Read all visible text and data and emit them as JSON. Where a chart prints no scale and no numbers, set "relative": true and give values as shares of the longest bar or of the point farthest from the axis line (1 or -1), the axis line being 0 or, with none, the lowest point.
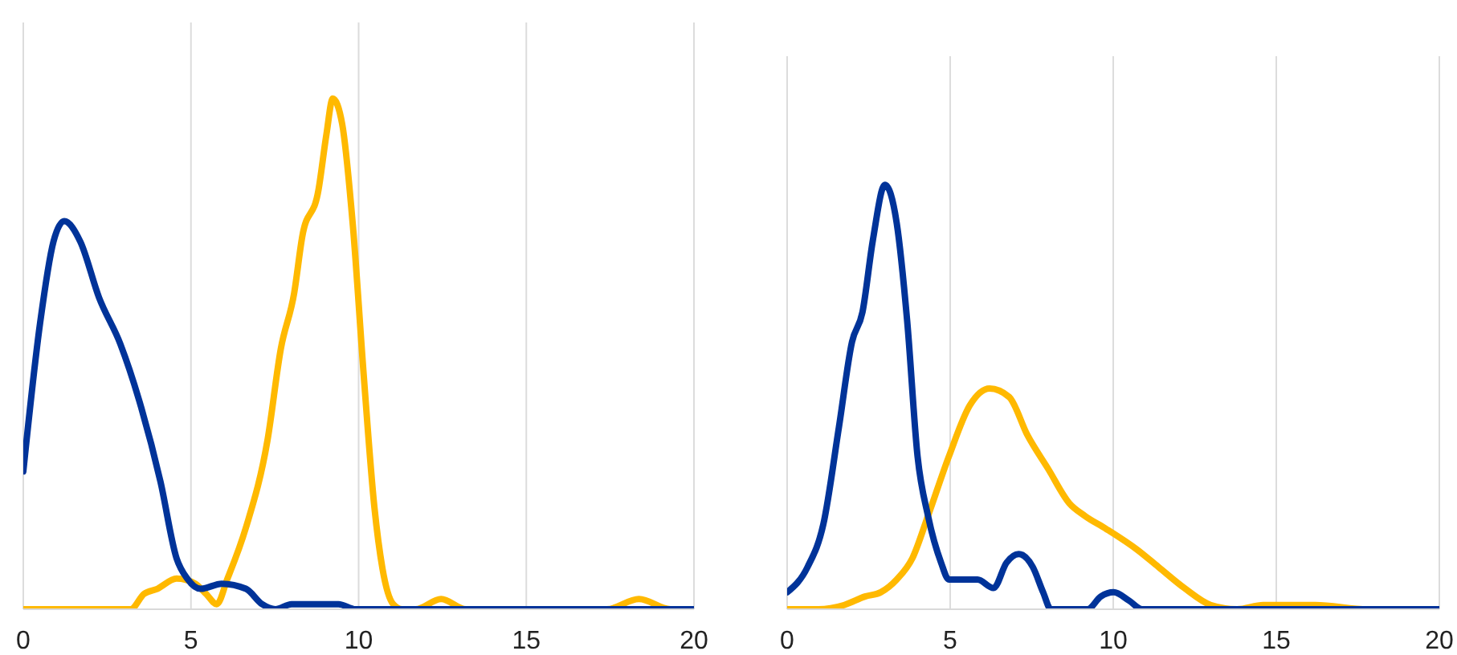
{
  "chart_data": [
    {
      "type": "line",
      "relative": true,
      "xlim": [
        0,
        20
      ],
      "xticks": [
        0,
        5,
        10,
        15,
        20
      ],
      "grid": "x",
      "series": [
        {
          "color": "#ffb900",
          "x": [
            0,
            3.2,
            3.6,
            4.0,
            4.57,
            5.13,
            5.45,
            5.77,
            6.09,
            6.64,
            7.28,
            7.68,
            8.08,
            8.32,
            8.8,
            9.04,
            9.23,
            9.51,
            9.83,
            10.15,
            10.47,
            10.71,
            11.03,
            11.3,
            11.7,
            12.46,
            13.2,
            17.4,
            18.36,
            19.3,
            20
          ],
          "values": [
            0,
            0,
            0.03,
            0.04,
            0.06,
            0.05,
            0.03,
            0.01,
            0.06,
            0.16,
            0.33,
            0.51,
            0.62,
            0.73,
            0.82,
            0.93,
            1,
            0.95,
            0.75,
            0.46,
            0.2,
            0.08,
            0.01,
            0,
            0,
            0.02,
            0,
            0,
            0.02,
            0,
            0
          ]
        },
        {
          "color": "#003399",
          "x": [
            0,
            0.5,
            0.9,
            1.22,
            1.7,
            2.26,
            2.89,
            3.45,
            4.09,
            4.57,
            4.89,
            5.29,
            5.92,
            6.64,
            7.12,
            7.52,
            8.0,
            8.8,
            9.4,
            9.91,
            20
          ],
          "values": [
            0.27,
            0.56,
            0.72,
            0.76,
            0.72,
            0.61,
            0.52,
            0.41,
            0.25,
            0.1,
            0.06,
            0.04,
            0.05,
            0.04,
            0.01,
            0,
            0.01,
            0.01,
            0.01,
            0,
            0
          ]
        }
      ]
    },
    {
      "type": "line",
      "relative": true,
      "xlim": [
        0,
        20
      ],
      "xticks": [
        0,
        5,
        10,
        15,
        20
      ],
      "grid": "x",
      "series": [
        {
          "color": "#ffb900",
          "x": [
            0,
            0.96,
            1.75,
            2.39,
            2.87,
            3.36,
            3.84,
            4.32,
            4.96,
            5.6,
            6.21,
            6.81,
            7.37,
            8.01,
            8.65,
            9.13,
            9.77,
            10.74,
            11.38,
            12.18,
            12.99,
            13.8,
            14.6,
            16.2,
            17.8,
            18.5,
            20
          ],
          "values": [
            0,
            0,
            0.01,
            0.03,
            0.04,
            0.07,
            0.12,
            0.22,
            0.36,
            0.48,
            0.52,
            0.5,
            0.41,
            0.33,
            0.25,
            0.22,
            0.19,
            0.14,
            0.1,
            0.05,
            0.01,
            0,
            0.01,
            0.01,
            0,
            0,
            0
          ]
        },
        {
          "color": "#003399",
          "x": [
            0,
            0.63,
            1.11,
            1.59,
            1.99,
            2.31,
            2.63,
            3.0,
            3.36,
            3.68,
            4.0,
            4.32,
            4.72,
            4.96,
            5.44,
            5.84,
            6.33,
            6.73,
            7.1,
            7.53,
            7.85,
            8.09,
            9.21,
            9.62,
            10.01,
            10.49,
            10.89,
            20
          ],
          "values": [
            0.04,
            0.1,
            0.2,
            0.43,
            0.63,
            0.7,
            0.87,
            1,
            0.91,
            0.68,
            0.36,
            0.22,
            0.11,
            0.07,
            0.07,
            0.07,
            0.05,
            0.11,
            0.13,
            0.1,
            0.04,
            0,
            0,
            0.03,
            0.04,
            0.02,
            0,
            0
          ]
        }
      ]
    }
  ]
}
